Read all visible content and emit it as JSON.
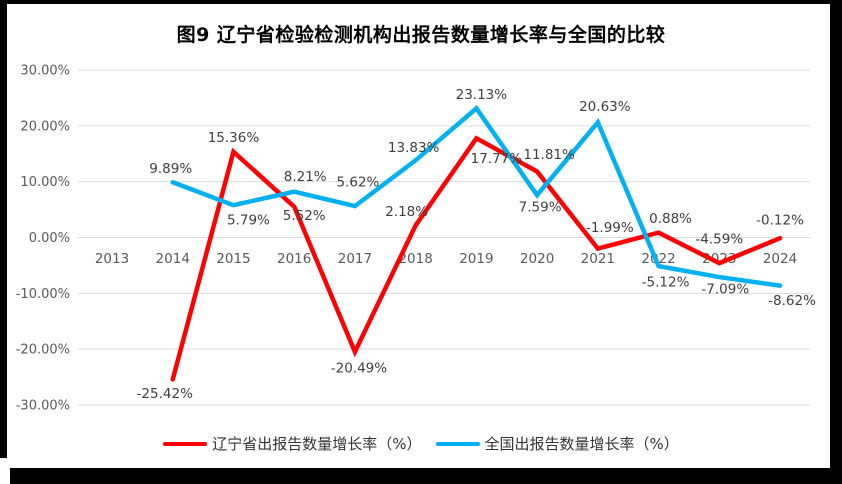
{
  "chart_data": {
    "type": "line",
    "title": "图9  辽宁省检验检测机构出报告数量增长率与全国的比较",
    "categories": [
      "2013",
      "2014",
      "2015",
      "2016",
      "2017",
      "2018",
      "2019",
      "2020",
      "2021",
      "2022",
      "2023",
      "2024"
    ],
    "series": [
      {
        "name": "辽宁省出报告数量增长率（%）",
        "color": "#FF0000",
        "values": [
          null,
          -25.42,
          15.36,
          5.52,
          -20.49,
          2.18,
          17.77,
          11.81,
          -1.99,
          0.88,
          -4.59,
          -0.12
        ],
        "label_offsets": [
          null,
          [
            -8,
            14
          ],
          [
            0,
            -14
          ],
          [
            10,
            9
          ],
          [
            4,
            16
          ],
          [
            -9,
            -14
          ],
          [
            20,
            20
          ],
          [
            12,
            -17
          ],
          [
            12,
            -21
          ],
          [
            12,
            -14
          ],
          [
            0,
            -24
          ],
          [
            0,
            -18
          ]
        ]
      },
      {
        "name": "全国出报告数量增长率（%）",
        "color": "#00B0F0",
        "values": [
          null,
          9.89,
          5.79,
          8.21,
          5.62,
          13.83,
          23.13,
          7.59,
          20.63,
          -5.12,
          -7.09,
          -8.62
        ],
        "label_offsets": [
          null,
          [
            -2,
            -14
          ],
          [
            15,
            15
          ],
          [
            11,
            -15
          ],
          [
            3,
            -24
          ],
          [
            -2,
            -13
          ],
          [
            5,
            -14
          ],
          [
            3,
            12
          ],
          [
            7,
            -16
          ],
          [
            7,
            16
          ],
          [
            6,
            12
          ],
          [
            12,
            15
          ]
        ]
      }
    ],
    "xlabel": "",
    "ylabel": "",
    "ylim": [
      -30,
      30
    ],
    "yticks": [
      "30.00%",
      "20.00%",
      "10.00%",
      "0.00%",
      "-10.00%",
      "-20.00%",
      "-30.00%"
    ],
    "grid": true,
    "legend_position": "bottom",
    "styles": {
      "grid_color": "#D9D9D9",
      "tick_color": "#595959",
      "label_color": "#404040",
      "title_color": "#000000",
      "frame_color": "#000000"
    }
  }
}
